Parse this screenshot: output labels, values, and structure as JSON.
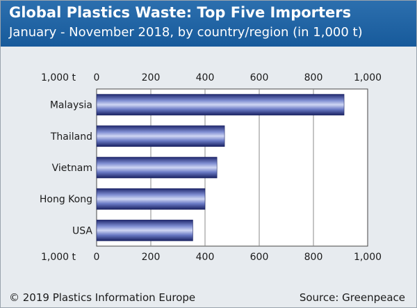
{
  "header": {
    "title": "Global Plastics Waste: Top Five Importers",
    "subtitle": "January - November 2018, by country/region (in 1,000 t)"
  },
  "footer": {
    "copyright": "© 2019 Plastics Information Europe",
    "source": "Source: Greenpeace"
  },
  "chart_data": {
    "type": "bar",
    "orientation": "horizontal",
    "title": "Global Plastics Waste: Top Five Importers",
    "subtitle": "January - November 2018, by country/region (in 1,000 t)",
    "unit_label": "1,000 t",
    "categories": [
      "Malaysia",
      "Thailand",
      "Vietnam",
      "Hong Kong",
      "USA"
    ],
    "values": [
      913,
      472,
      444,
      400,
      355
    ],
    "xlim": [
      0,
      1000
    ],
    "ticks": [
      0,
      200,
      400,
      600,
      800,
      1000
    ],
    "tick_labels": [
      "0",
      "200",
      "400",
      "600",
      "800",
      "1,000"
    ],
    "grid": true,
    "bar_color": "#3d4fa8",
    "plot_background": "#ffffff",
    "frame_background": "#e7ebef",
    "header_color": "#1f63a3"
  }
}
